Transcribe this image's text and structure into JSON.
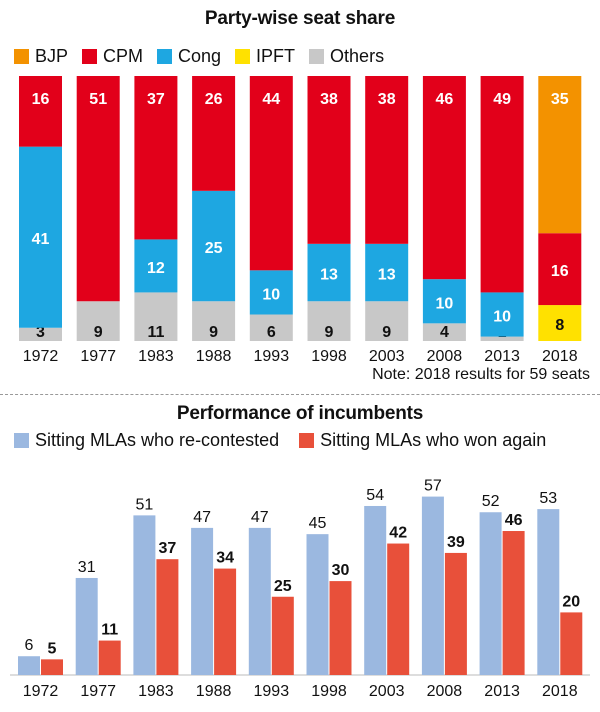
{
  "colors": {
    "BJP": "#f39200",
    "CPM": "#e2001a",
    "Cong": "#1ea7e1",
    "IPFT": "#ffe100",
    "Others": "#c8c8c8",
    "recontested": "#9bb8e0",
    "wonagain": "#e8503a"
  },
  "chart_data": [
    {
      "type": "bar",
      "stacked": true,
      "title": "Party-wise seat share",
      "categories": [
        "1972",
        "1977",
        "1983",
        "1988",
        "1993",
        "1998",
        "2003",
        "2008",
        "2013",
        "2018"
      ],
      "series": [
        {
          "name": "Others",
          "values": [
            3,
            9,
            11,
            9,
            6,
            9,
            9,
            4,
            1,
            null
          ]
        },
        {
          "name": "IPFT",
          "values": [
            null,
            null,
            null,
            null,
            null,
            null,
            null,
            null,
            null,
            8
          ]
        },
        {
          "name": "Cong",
          "values": [
            41,
            null,
            12,
            25,
            10,
            13,
            13,
            10,
            10,
            null
          ]
        },
        {
          "name": "CPM",
          "values": [
            16,
            51,
            37,
            26,
            44,
            38,
            38,
            46,
            49,
            16
          ]
        },
        {
          "name": "BJP",
          "values": [
            null,
            null,
            null,
            null,
            null,
            null,
            null,
            null,
            null,
            35
          ]
        }
      ],
      "legend": [
        "BJP",
        "CPM",
        "Cong",
        "IPFT",
        "Others"
      ],
      "note": "Note: 2018 results for 59 seats"
    },
    {
      "type": "bar",
      "title": "Performance of incumbents",
      "categories": [
        "1972",
        "1977",
        "1983",
        "1988",
        "1993",
        "1998",
        "2003",
        "2008",
        "2013",
        "2018"
      ],
      "series": [
        {
          "name": "Sitting MLAs who re-contested",
          "values": [
            6,
            31,
            51,
            47,
            47,
            45,
            54,
            57,
            52,
            53
          ]
        },
        {
          "name": "Sitting MLAs who won again",
          "values": [
            5,
            11,
            37,
            34,
            25,
            30,
            42,
            39,
            46,
            20
          ]
        }
      ]
    }
  ]
}
